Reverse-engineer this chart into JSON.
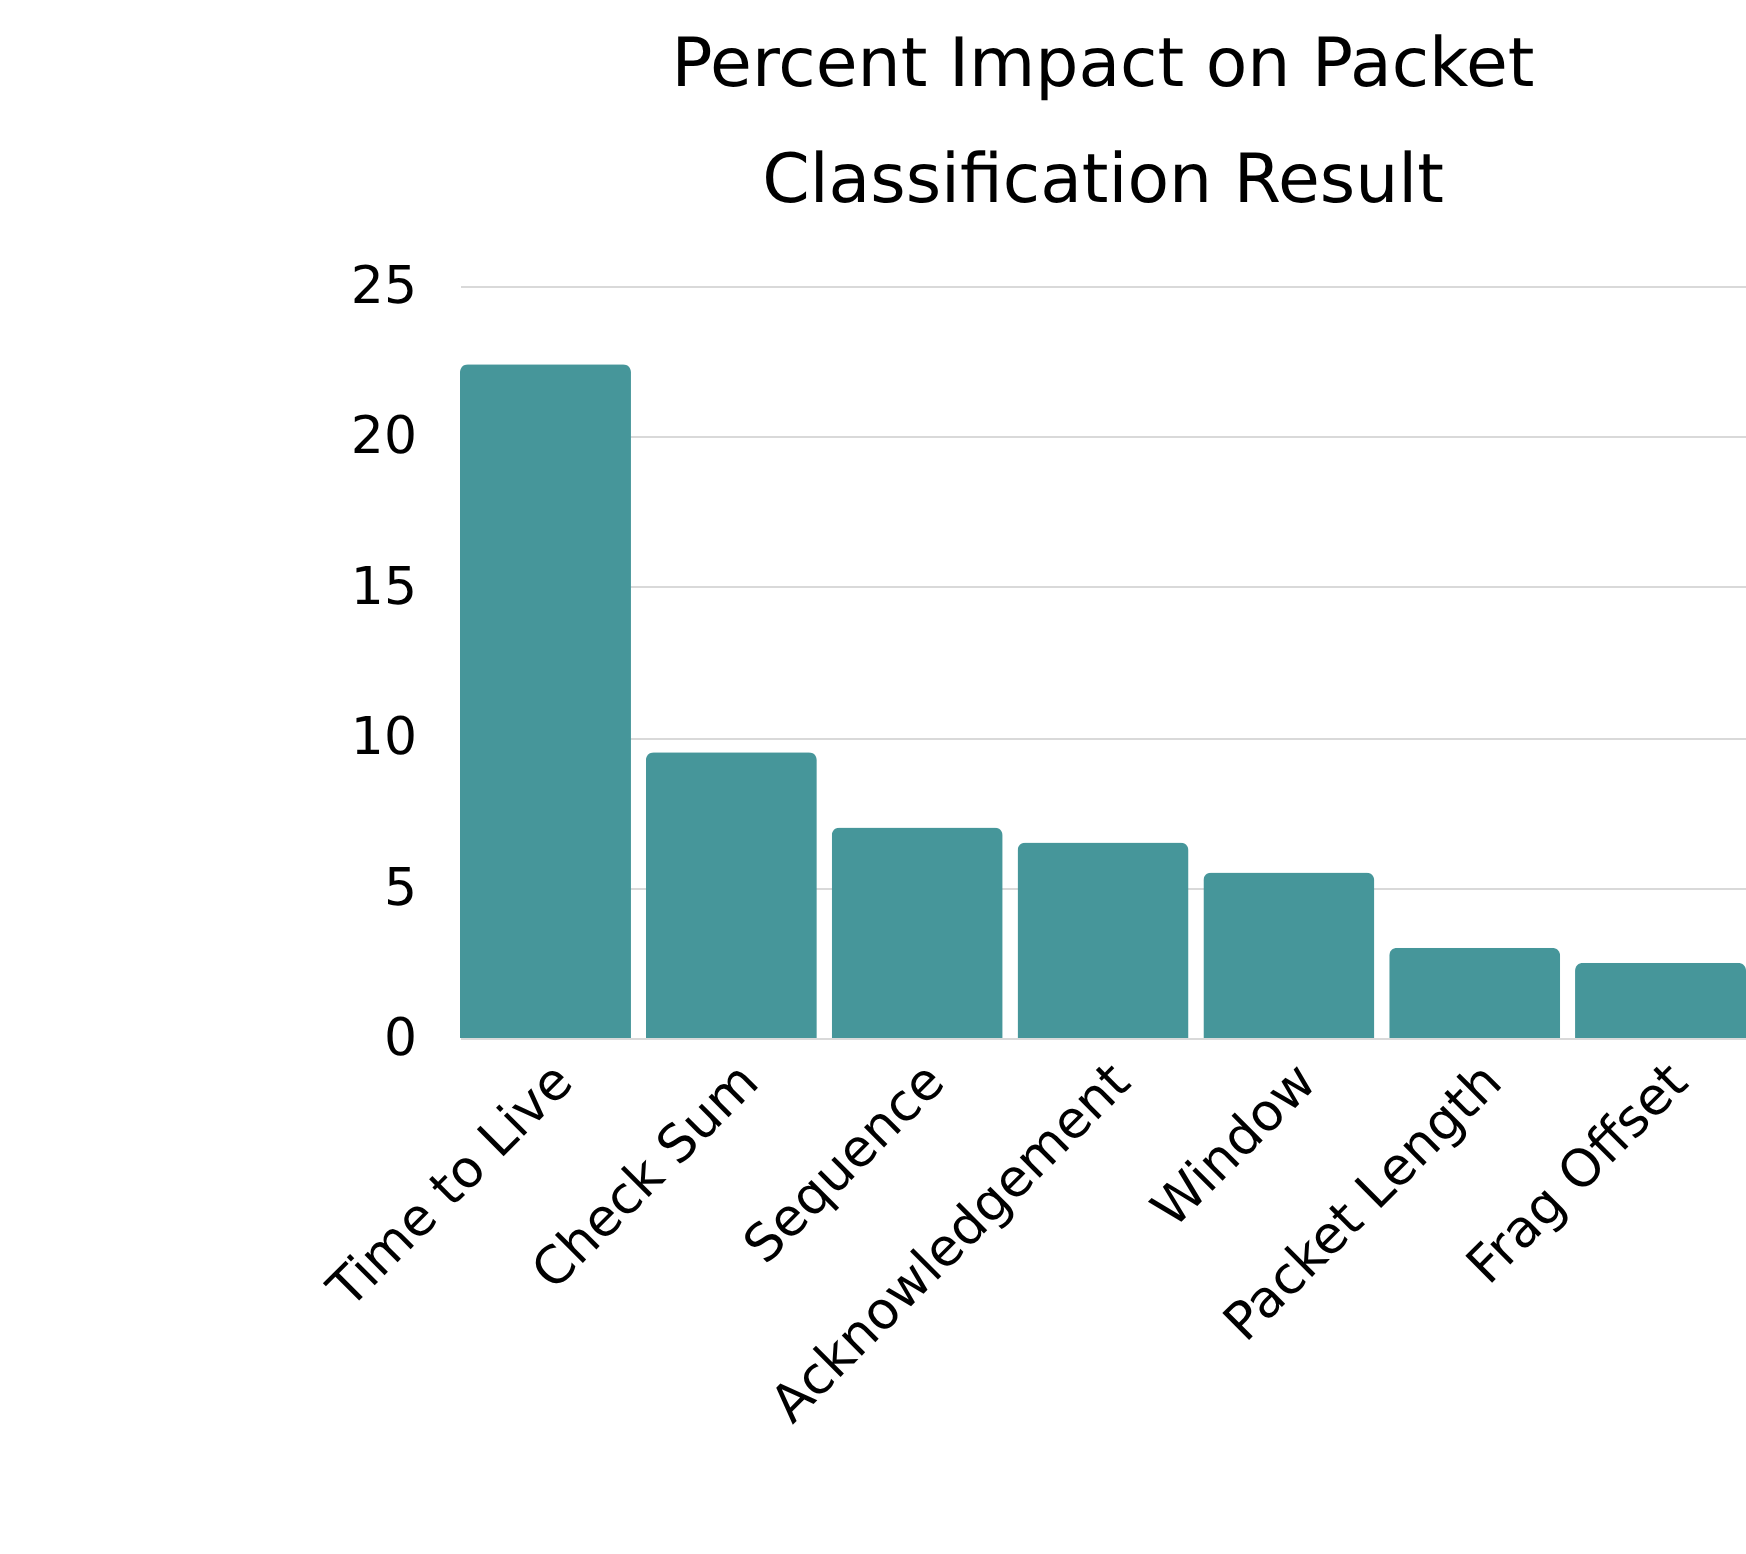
{
  "chart_data": {
    "type": "bar",
    "title": "Percent Impact on Packet Classification Result",
    "categories": [
      "Time to Live",
      "Check Sum",
      "Sequence",
      "Acknowledgement",
      "Window",
      "Packet Length",
      "Frag Offset"
    ],
    "values": [
      22.4,
      9.5,
      7.0,
      6.5,
      5.5,
      3.0,
      2.5
    ],
    "color": "#46969a",
    "ylim": [
      0,
      25
    ],
    "yticks": [
      0,
      5,
      10,
      15,
      20,
      25
    ],
    "grid": "y"
  }
}
